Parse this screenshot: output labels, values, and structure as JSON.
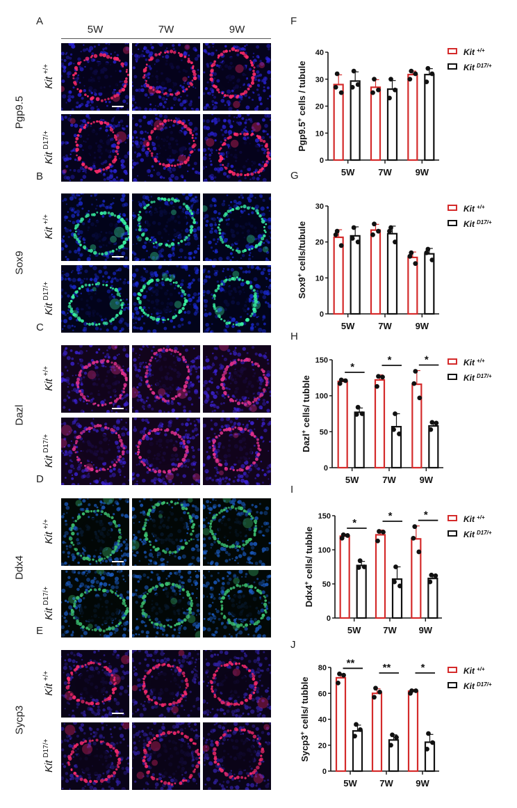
{
  "figure": {
    "column_headers": [
      "5W",
      "7W",
      "9W"
    ],
    "genotypes": {
      "wt": {
        "base": "Kit",
        "sup": "+/+"
      },
      "mut": {
        "base": "Kit",
        "sup": "D17/+"
      }
    },
    "image_panels": [
      {
        "letter": "A",
        "marker": "Pgp9.5",
        "stain": "red-on-blue",
        "colors": {
          "bg": "#05031c",
          "nuclei": "#2a23d8",
          "signal": "#ff2a6a"
        }
      },
      {
        "letter": "B",
        "marker": "Sox9",
        "stain": "green-on-blue",
        "colors": {
          "bg": "#02041a",
          "nuclei": "#1a2ad0",
          "signal": "#38f0a0"
        }
      },
      {
        "letter": "C",
        "marker": "Dazl",
        "stain": "magenta-on-blue",
        "colors": {
          "bg": "#12041c",
          "nuclei": "#3a22d0",
          "signal": "#e0308c"
        }
      },
      {
        "letter": "D",
        "marker": "Ddx4",
        "stain": "green-on-blue",
        "colors": {
          "bg": "#020806",
          "nuclei": "#1a5ac0",
          "signal": "#3cc070"
        }
      },
      {
        "letter": "E",
        "marker": "Sycp3",
        "stain": "red-on-blue",
        "colors": {
          "bg": "#0a0418",
          "nuclei": "#3020a0",
          "signal": "#f0286a"
        }
      }
    ],
    "legend": {
      "wt_label": "Kit",
      "wt_sup": "+/+",
      "mut_label": "Kit",
      "mut_sup": "D17/+",
      "wt_color": "#d42a2a",
      "mut_color": "#111111"
    }
  },
  "chart_data": [
    {
      "letter": "F",
      "type": "bar",
      "title": "",
      "ylabel": "Pgp9.5+ cells / tubule",
      "ylabel_base": "Pgp9.5",
      "ylabel_tail": " cells / tubule",
      "categories": [
        "5W",
        "7W",
        "9W"
      ],
      "ylim": [
        0,
        40
      ],
      "yticks": [
        0,
        10,
        20,
        30,
        40
      ],
      "series": [
        {
          "name": "Kit +/+",
          "values": [
            28,
            27,
            31.7
          ],
          "err": [
            3.6,
            2.8,
            1.3
          ],
          "points": [
            [
              32,
              27,
              25
            ],
            [
              30,
              25,
              26
            ],
            [
              33,
              30,
              32
            ]
          ]
        },
        {
          "name": "Kit D17/+",
          "values": [
            29.3,
            26.3,
            31.7
          ],
          "err": [
            3.4,
            3.2,
            2.2
          ],
          "points": [
            [
              33,
              27,
              28
            ],
            [
              30,
              23,
              26
            ],
            [
              34,
              29,
              32
            ]
          ]
        }
      ],
      "significance": [
        "",
        "",
        ""
      ],
      "legend_position": "right"
    },
    {
      "letter": "G",
      "type": "bar",
      "title": "",
      "ylabel": "Sox9+ cells/tubule",
      "ylabel_base": "Sox9",
      "ylabel_tail": " cells/tubule",
      "categories": [
        "5W",
        "7W",
        "9W"
      ],
      "ylim": [
        0,
        30
      ],
      "yticks": [
        0,
        10,
        20,
        30
      ],
      "series": [
        {
          "name": "Kit +/+",
          "values": [
            21.3,
            23.3,
            15.7
          ],
          "err": [
            2.1,
            1.6,
            1.5
          ],
          "points": [
            [
              23,
              22,
              19
            ],
            [
              25,
              22,
              23
            ],
            [
              17,
              16,
              14
            ]
          ]
        },
        {
          "name": "Kit D17/+",
          "values": [
            21.7,
            22.3,
            16.7
          ],
          "err": [
            2.5,
            2.1,
            1.5
          ],
          "points": [
            [
              24,
              21,
              20
            ],
            [
              24,
              23,
              20
            ],
            [
              18,
              17,
              15
            ]
          ]
        }
      ],
      "significance": [
        "",
        "",
        ""
      ],
      "legend_position": "right"
    },
    {
      "letter": "H",
      "type": "bar",
      "title": "",
      "ylabel": "Dazl+ cells/ tubble",
      "ylabel_base": "Dazl",
      "ylabel_tail": " cells/ tubble",
      "categories": [
        "5W",
        "7W",
        "9W"
      ],
      "ylim": [
        0,
        150
      ],
      "yticks": [
        0,
        50,
        100,
        150
      ],
      "series": [
        {
          "name": "Kit +/+",
          "values": [
            120,
            122,
            116
          ],
          "err": [
            3,
            7,
            19
          ],
          "points": [
            [
              122,
              117,
              121
            ],
            [
              127,
              113,
              126
            ],
            [
              134,
              117,
              97
            ]
          ]
        },
        {
          "name": "Kit D17/+",
          "values": [
            77,
            57,
            58
          ],
          "err": [
            6,
            18,
            5
          ],
          "points": [
            [
              84,
              74,
              75
            ],
            [
              75,
              53,
              47
            ],
            [
              63,
              53,
              62
            ]
          ]
        }
      ],
      "significance": [
        "*",
        "*",
        "*"
      ],
      "legend_position": "right"
    },
    {
      "letter": "I",
      "type": "bar",
      "title": "",
      "ylabel": "Ddx4+ cells/ tubble",
      "ylabel_base": "Ddx4",
      "ylabel_tail": " cells/ tubble",
      "categories": [
        "5W",
        "7W",
        "9W"
      ],
      "ylim": [
        0,
        150
      ],
      "yticks": [
        0,
        50,
        100,
        150
      ],
      "series": [
        {
          "name": "Kit +/+",
          "values": [
            120,
            122,
            116
          ],
          "err": [
            3,
            7,
            19
          ],
          "points": [
            [
              122,
              117,
              121
            ],
            [
              127,
              113,
              126
            ],
            [
              134,
              117,
              97
            ]
          ]
        },
        {
          "name": "Kit D17/+",
          "values": [
            77,
            57,
            58
          ],
          "err": [
            6,
            18,
            5
          ],
          "points": [
            [
              84,
              74,
              75
            ],
            [
              75,
              53,
              47
            ],
            [
              63,
              53,
              62
            ]
          ]
        }
      ],
      "significance": [
        "*",
        "*",
        "*"
      ],
      "legend_position": "right"
    },
    {
      "letter": "J",
      "type": "bar",
      "title": "",
      "ylabel": "Sycp3+ cells/ tubble",
      "ylabel_base": "Sycp3",
      "ylabel_tail": " cells/ tubble",
      "categories": [
        "5W",
        "7W",
        "9W"
      ],
      "ylim": [
        0,
        80
      ],
      "yticks": [
        0,
        20,
        40,
        60,
        80
      ],
      "series": [
        {
          "name": "Kit +/+",
          "values": [
            72,
            60,
            61.7
          ],
          "err": [
            3,
            3.5,
            1.2
          ],
          "points": [
            [
              75,
              68,
              74
            ],
            [
              64,
              57,
              61
            ],
            [
              62,
              60,
              62
            ]
          ]
        },
        {
          "name": "Kit D17/+",
          "values": [
            31,
            24,
            22.3
          ],
          "err": [
            4.5,
            4,
            6
          ],
          "points": [
            [
              36,
              27,
              32
            ],
            [
              28,
              20,
              26
            ],
            [
              29,
              17,
              22
            ]
          ]
        }
      ],
      "significance": [
        "**",
        "**",
        "*"
      ],
      "legend_position": "right"
    }
  ]
}
